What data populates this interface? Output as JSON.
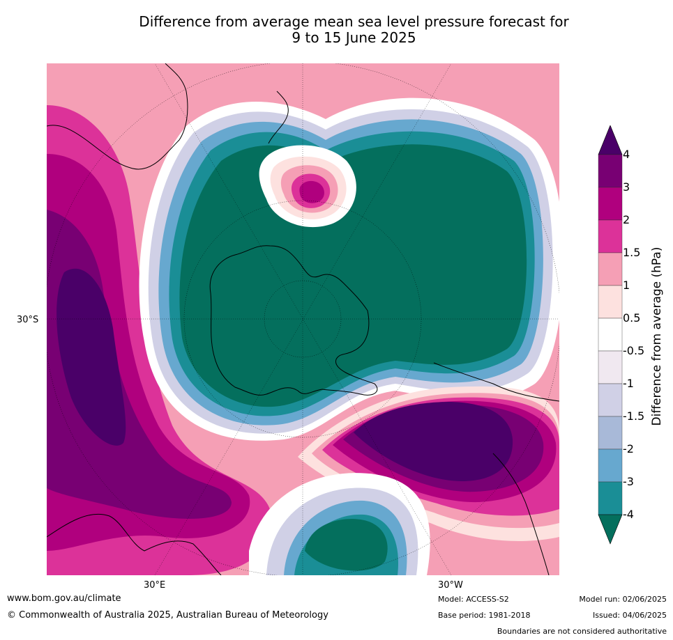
{
  "title_line1": "Difference from average mean sea level pressure forecast for",
  "title_line2": "9 to 15 June 2025",
  "map": {
    "projection": "south-polar-stereographic",
    "tick_labels": {
      "left": "30°S",
      "bottom_left": "30°E",
      "bottom_right": "30°W"
    }
  },
  "colorbar": {
    "title": "Difference from average (hPa)",
    "labels": [
      "4",
      "3",
      "2",
      "1.5",
      "1",
      "0.5",
      "-0.5",
      "-1",
      "-1.5",
      "-2",
      "-3",
      "-4"
    ],
    "colors": [
      "#4a0068",
      "#780073",
      "#b0007e",
      "#dc3299",
      "#f59fb5",
      "#fde1df",
      "#ffffff",
      "#f0e8f0",
      "#d0d0e6",
      "#a8b9d8",
      "#67a8cf",
      "#1a8e96",
      "#046f5d"
    ]
  },
  "footer": {
    "website": "www.bom.gov.au/climate",
    "copyright": "© Commonwealth of Australia 2025, Australian Bureau of Meteorology",
    "model": "Model: ACCESS-S2",
    "base_period": "Base period: 1981-2018",
    "model_run": "Model run: 02/06/2025",
    "issued": "Issued: 04/06/2025",
    "disclaimer": "Boundaries are not considered authoritative"
  }
}
